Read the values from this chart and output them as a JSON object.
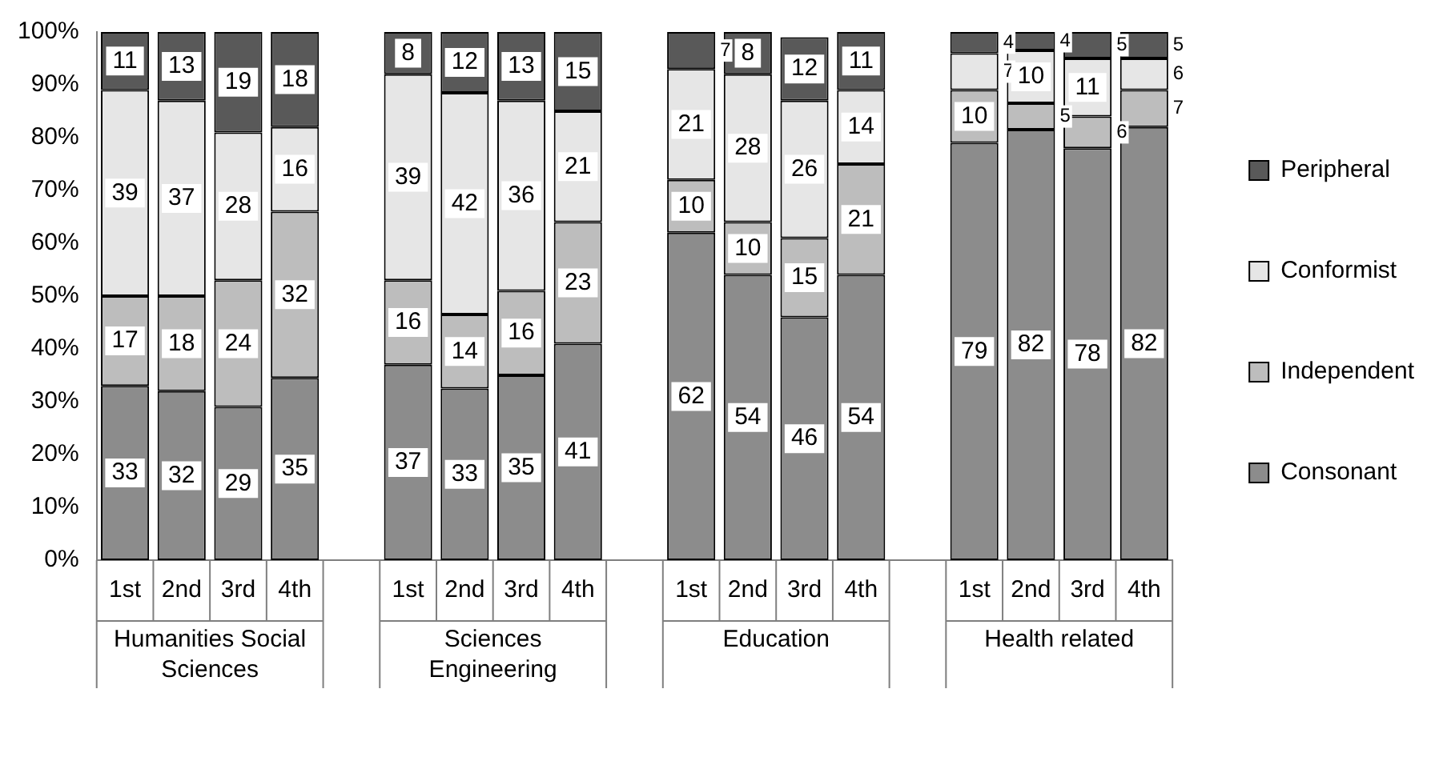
{
  "chart_data": {
    "type": "bar",
    "stacked": true,
    "legend": "right",
    "grid": false,
    "categories": [
      "1st",
      "2nd",
      "3rd",
      "4th",
      null,
      "1st",
      "2nd",
      "3rd",
      "4th",
      null,
      "1st",
      "2nd",
      "3rd",
      "4th",
      null,
      "1st",
      "2nd",
      "3rd",
      "4th"
    ],
    "annotations": [
      "Humanities Social Sciences",
      "Sciences Engineering",
      "Education",
      "Health related"
    ],
    "ylim": [
      0,
      100
    ],
    "yticks": [
      {
        "value": 0,
        "label": "0%"
      },
      {
        "value": 10,
        "label": "10%"
      },
      {
        "value": 20,
        "label": "20%"
      },
      {
        "value": 30,
        "label": "30%"
      },
      {
        "value": 40,
        "label": "40%"
      },
      {
        "value": 50,
        "label": "50%"
      },
      {
        "value": 60,
        "label": "60%"
      },
      {
        "value": 70,
        "label": "70%"
      },
      {
        "value": 80,
        "label": "80%"
      },
      {
        "value": 90,
        "label": "90%"
      },
      {
        "value": 100,
        "label": "100%"
      }
    ],
    "series": [
      {
        "name": "Consonant",
        "color": "#8c8c8c",
        "values": [
          33,
          32,
          29,
          34.5,
          null,
          37,
          32.5,
          35,
          41,
          null,
          62,
          54,
          46,
          54,
          null,
          79,
          81.5,
          78,
          82
        ],
        "value_labels": [
          "33",
          "32",
          "29",
          "35",
          null,
          "37",
          "33",
          "35",
          "41",
          null,
          "62",
          "54",
          "46",
          "54",
          null,
          "79",
          "82",
          "78",
          "82"
        ]
      },
      {
        "name": "Independent",
        "color": "#bdbdbd",
        "values": [
          17,
          18,
          24,
          31.5,
          null,
          16,
          14,
          16,
          23,
          null,
          10,
          10,
          15,
          21,
          null,
          10,
          5,
          6,
          7
        ],
        "value_labels": [
          "17",
          "18",
          "24",
          "32",
          null,
          "16",
          "14",
          "16",
          "23",
          null,
          "10",
          "10",
          "15",
          "21",
          null,
          "10",
          "5",
          "6",
          "7"
        ]
      },
      {
        "name": "Conformist",
        "color": "#e6e6e6",
        "values": [
          39,
          37,
          28,
          16,
          null,
          39,
          42,
          36,
          21,
          null,
          21,
          28,
          26,
          14,
          null,
          7,
          10,
          11,
          6
        ],
        "value_labels": [
          "39",
          "37",
          "28",
          "16",
          null,
          "39",
          "42",
          "36",
          "21",
          null,
          "21",
          "28",
          "26",
          "14",
          null,
          "7",
          "10",
          "11",
          "6"
        ]
      },
      {
        "name": "Peripheral",
        "color": "#595959",
        "values": [
          11,
          13,
          19,
          18,
          null,
          8,
          11.5,
          13,
          15,
          null,
          7,
          8,
          12,
          11,
          null,
          4,
          3.5,
          5,
          5
        ],
        "value_labels": [
          "11",
          "13",
          "19",
          "18",
          null,
          "8",
          "12",
          "13",
          "15",
          null,
          "7",
          "8",
          "12",
          "11",
          null,
          "4",
          "4",
          "5",
          "5"
        ]
      }
    ]
  }
}
